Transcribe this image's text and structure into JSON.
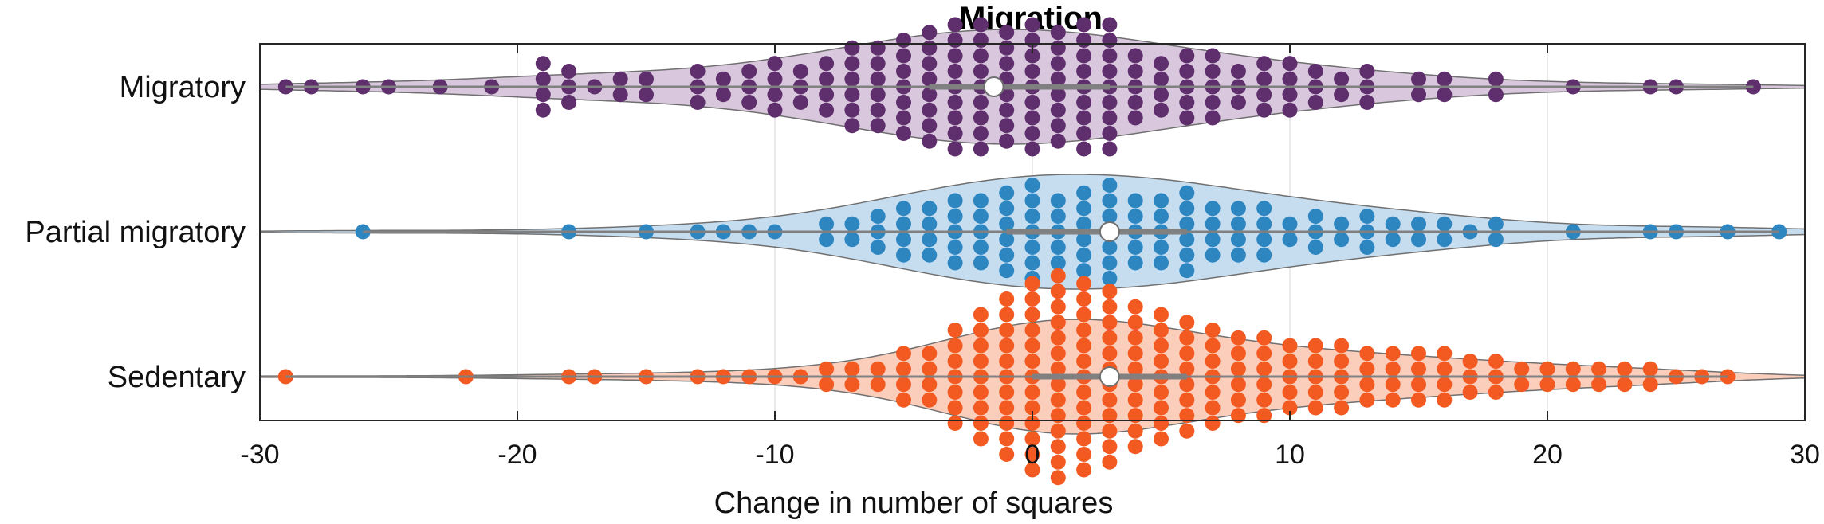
{
  "chart_data": {
    "type": "violin-swarm",
    "title": "Migration",
    "xlabel": "Change in number of squares",
    "ylabel": "",
    "xlim": [
      -30,
      30
    ],
    "xticks": [
      -30,
      -20,
      -10,
      0,
      10,
      20,
      30
    ],
    "grid": true,
    "orientation": "horizontal",
    "series": [
      {
        "name": "Migratory",
        "color": "#5e2f6c",
        "fill": "#d5c2d9",
        "median": -1.5,
        "q1": -4,
        "q3": 3,
        "values": [
          -29,
          -28,
          -26,
          -25,
          -23,
          -21,
          -19,
          -19,
          -19,
          -19,
          -18,
          -18,
          -18,
          -17,
          -16,
          -16,
          -15,
          -15,
          -13,
          -13,
          -13,
          -12,
          -12,
          -11,
          -11,
          -11,
          -10,
          -10,
          -10,
          -10,
          -9,
          -9,
          -9,
          -8,
          -8,
          -8,
          -8,
          -7,
          -7,
          -7,
          -7,
          -7,
          -7,
          -6,
          -6,
          -6,
          -6,
          -6,
          -6,
          -5,
          -5,
          -5,
          -5,
          -5,
          -5,
          -5,
          -4,
          -4,
          -4,
          -4,
          -4,
          -4,
          -4,
          -4,
          -3,
          -3,
          -3,
          -3,
          -3,
          -3,
          -3,
          -3,
          -3,
          -2,
          -2,
          -2,
          -2,
          -2,
          -2,
          -2,
          -2,
          -2,
          -1,
          -1,
          -1,
          -1,
          -1,
          -1,
          -1,
          -1,
          0,
          0,
          0,
          0,
          0,
          0,
          0,
          0,
          0,
          1,
          1,
          1,
          1,
          1,
          1,
          1,
          1,
          2,
          2,
          2,
          2,
          2,
          2,
          2,
          2,
          2,
          3,
          3,
          3,
          3,
          3,
          3,
          3,
          3,
          3,
          4,
          4,
          4,
          4,
          4,
          5,
          5,
          5,
          5,
          6,
          6,
          6,
          6,
          6,
          7,
          7,
          7,
          7,
          7,
          8,
          8,
          8,
          9,
          9,
          9,
          9,
          10,
          10,
          10,
          10,
          11,
          11,
          11,
          12,
          12,
          13,
          13,
          13,
          15,
          15,
          16,
          16,
          18,
          18,
          21,
          24,
          25,
          28
        ]
      },
      {
        "name": "Partial migratory",
        "color": "#2e86c1",
        "fill": "#c0d9ee",
        "median": 3,
        "q1": -1,
        "q3": 6,
        "values": [
          -26,
          -18,
          -15,
          -13,
          -12,
          -11,
          -10,
          -8,
          -8,
          -7,
          -7,
          -6,
          -6,
          -6,
          -5,
          -5,
          -5,
          -5,
          -4,
          -4,
          -4,
          -4,
          -3,
          -3,
          -3,
          -3,
          -3,
          -2,
          -2,
          -2,
          -2,
          -2,
          -1,
          -1,
          -1,
          -1,
          -1,
          -1,
          0,
          0,
          0,
          0,
          0,
          0,
          0,
          1,
          1,
          1,
          1,
          1,
          2,
          2,
          2,
          2,
          2,
          2,
          3,
          3,
          3,
          3,
          3,
          3,
          3,
          4,
          4,
          4,
          4,
          4,
          5,
          5,
          5,
          5,
          5,
          6,
          6,
          6,
          6,
          6,
          6,
          7,
          7,
          7,
          7,
          8,
          8,
          8,
          8,
          9,
          9,
          9,
          9,
          10,
          10,
          11,
          11,
          11,
          12,
          12,
          13,
          13,
          13,
          14,
          14,
          15,
          15,
          16,
          16,
          17,
          18,
          18,
          21,
          24,
          25,
          27,
          29
        ]
      },
      {
        "name": "Sedentary",
        "color": "#f25a22",
        "fill": "#fbc9b5",
        "median": 3,
        "q1": 0,
        "q3": 6,
        "values": [
          -29,
          -22,
          -18,
          -17,
          -15,
          -13,
          -12,
          -11,
          -10,
          -9,
          -8,
          -8,
          -7,
          -7,
          -6,
          -6,
          -5,
          -5,
          -5,
          -5,
          -4,
          -4,
          -4,
          -4,
          -3,
          -3,
          -3,
          -3,
          -3,
          -3,
          -3,
          -2,
          -2,
          -2,
          -2,
          -2,
          -2,
          -2,
          -2,
          -2,
          -1,
          -1,
          -1,
          -1,
          -1,
          -1,
          -1,
          -1,
          -1,
          -1,
          -1,
          0,
          0,
          0,
          0,
          0,
          0,
          0,
          0,
          0,
          0,
          0,
          0,
          0,
          1,
          1,
          1,
          1,
          1,
          1,
          1,
          1,
          1,
          1,
          1,
          1,
          1,
          1,
          2,
          2,
          2,
          2,
          2,
          2,
          2,
          2,
          2,
          2,
          2,
          2,
          2,
          3,
          3,
          3,
          3,
          3,
          3,
          3,
          3,
          3,
          3,
          3,
          3,
          4,
          4,
          4,
          4,
          4,
          4,
          4,
          4,
          4,
          4,
          5,
          5,
          5,
          5,
          5,
          5,
          5,
          5,
          5,
          6,
          6,
          6,
          6,
          6,
          6,
          6,
          6,
          7,
          7,
          7,
          7,
          7,
          7,
          7,
          8,
          8,
          8,
          8,
          8,
          8,
          9,
          9,
          9,
          9,
          9,
          9,
          10,
          10,
          10,
          10,
          10,
          11,
          11,
          11,
          11,
          11,
          12,
          12,
          12,
          12,
          12,
          13,
          13,
          13,
          13,
          14,
          14,
          14,
          14,
          15,
          15,
          15,
          15,
          16,
          16,
          16,
          16,
          17,
          17,
          17,
          18,
          18,
          18,
          19,
          19,
          20,
          20,
          21,
          21,
          22,
          22,
          23,
          23,
          24,
          24,
          25,
          26,
          27
        ]
      }
    ]
  }
}
